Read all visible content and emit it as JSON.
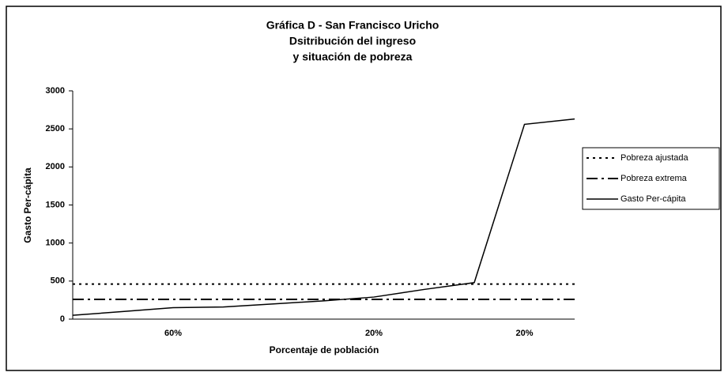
{
  "chart_data": {
    "type": "line",
    "title": [
      "Gráfica D - San Francisco Uricho",
      "Dsitribución del ingreso",
      "y situación de pobreza"
    ],
    "x_label": "Porcentaje de población",
    "y_label": "Gasto Per-cápita",
    "categories": [
      null,
      null,
      "60%",
      null,
      null,
      null,
      "20%",
      null,
      null,
      "20%",
      null
    ],
    "series": [
      {
        "name": "Pobreza ajustada",
        "color": "#000000",
        "style": "dotted",
        "values": [
          460,
          460,
          460,
          460,
          460,
          460,
          460,
          460,
          460,
          460,
          460
        ]
      },
      {
        "name": "Pobreza extrema",
        "color": "#000000",
        "style": "dashdot",
        "values": [
          260,
          260,
          260,
          260,
          260,
          260,
          260,
          260,
          260,
          260,
          260
        ]
      },
      {
        "name": "Gasto Per-cápita",
        "color": "#000000",
        "style": "solid",
        "values": [
          50,
          100,
          150,
          160,
          200,
          240,
          290,
          390,
          480,
          2560,
          2630
        ]
      }
    ],
    "ylim": [
      0,
      3000
    ],
    "yticks": [
      0,
      500,
      1000,
      1500,
      2000,
      2500,
      3000
    ],
    "grid": false,
    "legend": "right"
  }
}
